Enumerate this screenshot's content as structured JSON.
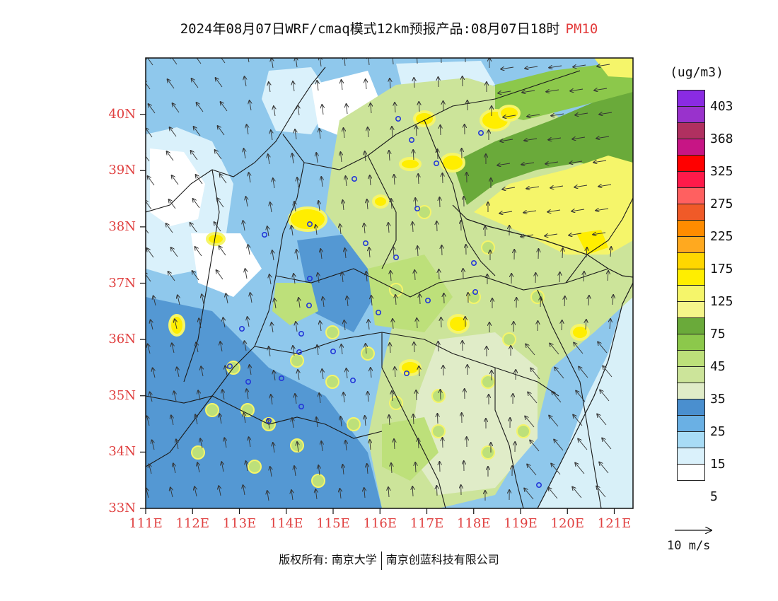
{
  "header": {
    "title": "2024年08月07日WRF/cmaq模式12km预报产品:08月07日18时",
    "pollutant": "PM10"
  },
  "map": {
    "lat_labels": [
      "33N",
      "34N",
      "35N",
      "36N",
      "37N",
      "38N",
      "39N",
      "40N"
    ],
    "lon_labels": [
      "111E",
      "112E",
      "113E",
      "114E",
      "115E",
      "116E",
      "117E",
      "118E",
      "119E",
      "120E",
      "121E"
    ],
    "lon_range": [
      111,
      121.4
    ],
    "lat_range": [
      33,
      41
    ],
    "colors": {
      "water": "#d8f0f8",
      "land_base": "#8fc8ec",
      "border": "#1a1a1a",
      "arrow": "#333333",
      "station": "#2438d8"
    }
  },
  "legend": {
    "unit": "(ug/m3)",
    "ticks": [
      "403",
      "368",
      "325",
      "275",
      "225",
      "175",
      "125",
      "75",
      "45",
      "35",
      "25",
      "15",
      "5"
    ],
    "colors": [
      "#8a2be2",
      "#9932cc",
      "#b03060",
      "#c71585",
      "#ff0000",
      "#ff1a4a",
      "#ff6060",
      "#f05a28",
      "#ff8c00",
      "#ffa91f",
      "#ffd700",
      "#ffee00",
      "#f5f56a",
      "#f5f58a",
      "#6aaa3a",
      "#8cc84b",
      "#bde07a",
      "#cce49a",
      "#e0ecc8",
      "#4a8fcf",
      "#6ab0e4",
      "#a8dcf6",
      "#daf1fb",
      "#ffffff"
    ]
  },
  "wind_reference": {
    "label": "10 m/s"
  },
  "footer": {
    "left": "版权所有: 南京大学",
    "right": "南京创蓝科技有限公司"
  }
}
